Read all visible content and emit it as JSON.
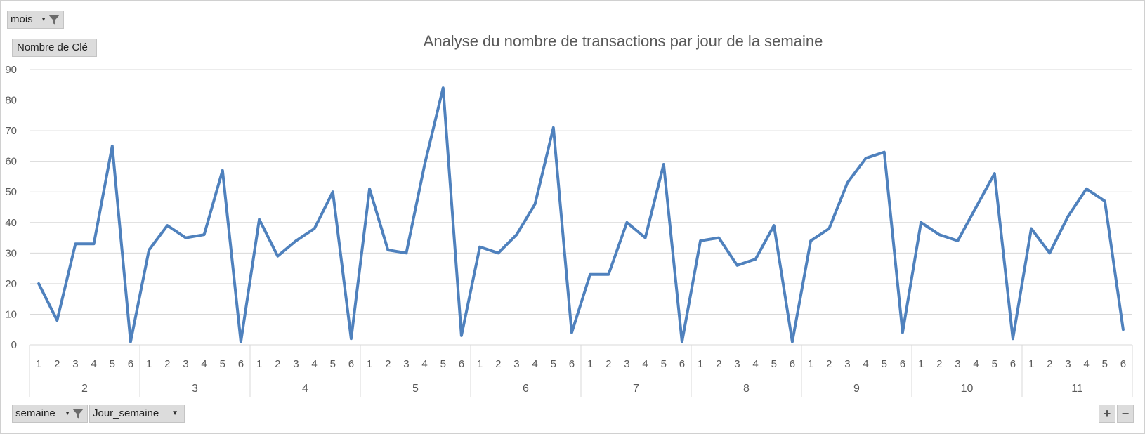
{
  "filters": {
    "mois_label": "mois",
    "value_label": "Nombre de Clé",
    "semaine_label": "semaine",
    "jour_label": "Jour_semaine"
  },
  "zoom": {
    "plus": "+",
    "minus": "−"
  },
  "colors": {
    "line": "#4f81bd",
    "grid": "#d9d9d9",
    "axis_text": "#595959"
  },
  "chart_data": {
    "type": "line",
    "title": "Analyse du nombre de transactions par jour de la semaine",
    "ylim": [
      0,
      90
    ],
    "yticks": [
      0,
      10,
      20,
      30,
      40,
      50,
      60,
      70,
      80,
      90
    ],
    "grid": true,
    "groups": [
      {
        "label": "2",
        "days": [
          "1",
          "2",
          "3",
          "4",
          "5",
          "6"
        ]
      },
      {
        "label": "3",
        "days": [
          "1",
          "2",
          "3",
          "4",
          "5",
          "6"
        ]
      },
      {
        "label": "4",
        "days": [
          "1",
          "2",
          "3",
          "4",
          "5",
          "6"
        ]
      },
      {
        "label": "5",
        "days": [
          "1",
          "2",
          "3",
          "4",
          "5",
          "6"
        ]
      },
      {
        "label": "6",
        "days": [
          "1",
          "2",
          "3",
          "4",
          "5",
          "6"
        ]
      },
      {
        "label": "7",
        "days": [
          "1",
          "2",
          "3",
          "4",
          "5",
          "6"
        ]
      },
      {
        "label": "8",
        "days": [
          "1",
          "2",
          "3",
          "4",
          "5",
          "6"
        ]
      },
      {
        "label": "9",
        "days": [
          "1",
          "2",
          "3",
          "4",
          "5",
          "6"
        ]
      },
      {
        "label": "10",
        "days": [
          "1",
          "2",
          "3",
          "4",
          "5",
          "6"
        ]
      },
      {
        "label": "11",
        "days": [
          "1",
          "2",
          "3",
          "4",
          "5",
          "6"
        ]
      }
    ],
    "series": [
      {
        "values": [
          20,
          8,
          33,
          33,
          65,
          1,
          31,
          39,
          35,
          36,
          57,
          1,
          41,
          29,
          34,
          38,
          50,
          2,
          51,
          31,
          30,
          59,
          84,
          3,
          32,
          30,
          36,
          46,
          71,
          4,
          23,
          23,
          40,
          35,
          59,
          1,
          34,
          35,
          26,
          28,
          39,
          1,
          34,
          38,
          53,
          61,
          63,
          4,
          40,
          36,
          34,
          45,
          56,
          2,
          38,
          30,
          42,
          51,
          47,
          5
        ]
      }
    ]
  }
}
